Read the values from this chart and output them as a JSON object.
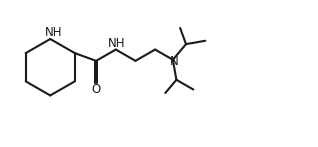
{
  "background_color": "#ffffff",
  "line_color": "#1a1a1a",
  "text_color": "#1a1a1a",
  "line_width": 1.5,
  "font_size": 8.5,
  "figsize": [
    3.18,
    1.47
  ],
  "dpi": 100,
  "xlim": [
    0,
    10
  ],
  "ylim": [
    0,
    4.6
  ]
}
